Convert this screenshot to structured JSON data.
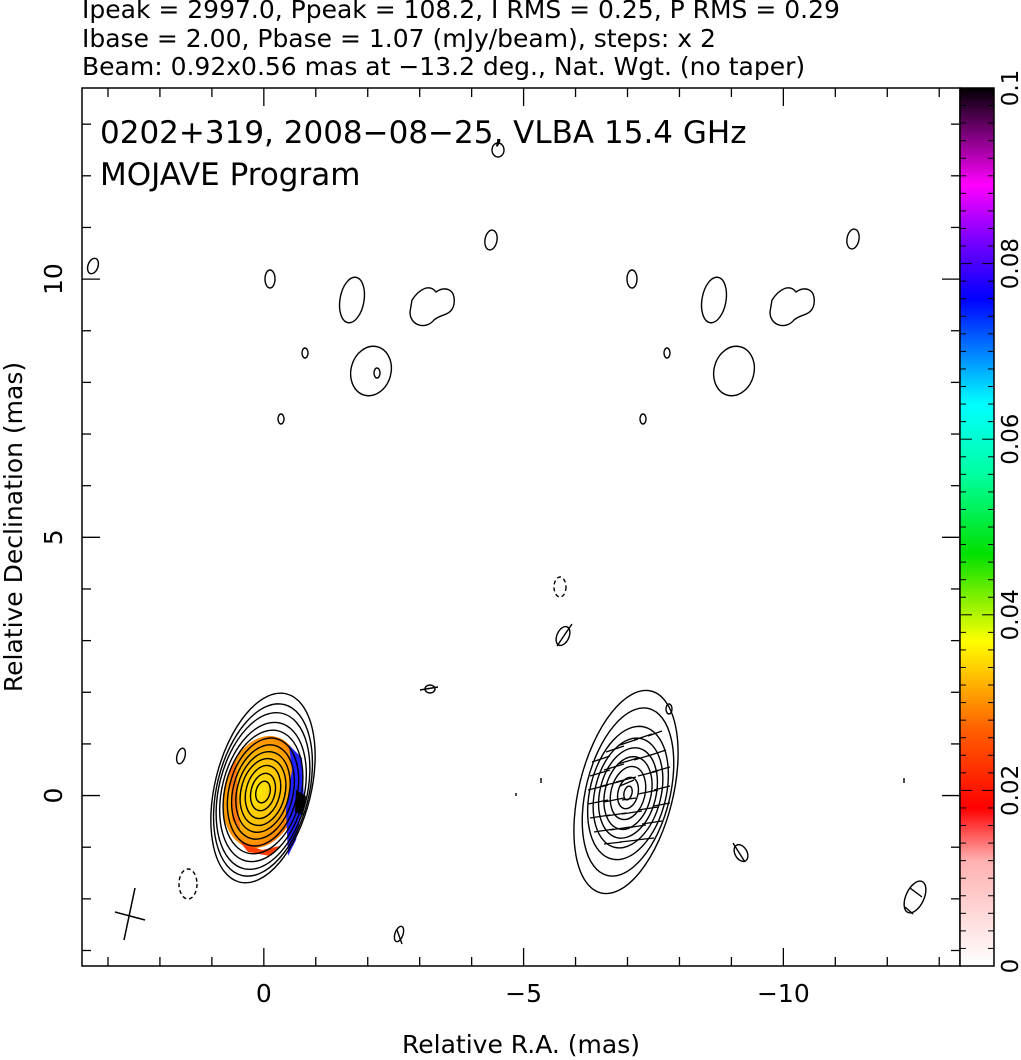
{
  "header": {
    "line1": "Ipeak = 2997.0, Ppeak = 108.2, I RMS = 0.25, P RMS = 0.29",
    "line2": "Ibase = 2.00, Pbase = 1.07 (mJy/beam), steps: x 2",
    "line3": "Beam: 0.92x0.56 mas at −13.2 deg., Nat. Wgt. (no taper)"
  },
  "panel": {
    "title_line1": "0202+319, 2008−08−25, VLBA 15.4 GHz",
    "title_line2": "MOJAVE Program"
  },
  "chart_data": {
    "type": "contour",
    "xlabel": "Relative R.A. (mas)",
    "ylabel": "Relative Declination (mas)",
    "xlim": [
      3.5,
      -13.4
    ],
    "ylim": [
      -3.3,
      13.7
    ],
    "x_ticks": [
      0,
      -5,
      -10
    ],
    "x_tick_labels": [
      "0",
      "−5",
      "−10"
    ],
    "y_ticks": [
      0,
      5,
      10
    ],
    "y_tick_labels": [
      "0",
      "5",
      "10"
    ],
    "colorbar": {
      "min": 0,
      "max": 0.1,
      "ticks": [
        0,
        0.02,
        0.04,
        0.06,
        0.08,
        0.1
      ],
      "tick_labels": [
        "0",
        "0.02",
        "0.04",
        "0.06",
        "0.08",
        "0.1"
      ],
      "colormap": [
        "#ffffff",
        "#ff0000",
        "#ff8000",
        "#ffff00",
        "#00ff00",
        "#00ffff",
        "#0000ff",
        "#ff00ff",
        "#000000"
      ]
    },
    "core": {
      "ra": 0.05,
      "dec": 0.0,
      "contour_levels": 12,
      "peak_mJy": 2997.0
    },
    "colored_region_fraction_polarization": {
      "min": 0.02,
      "max": 0.09,
      "dominant": 0.03
    },
    "evpa_ticks": true,
    "beam": {
      "major_mas": 0.92,
      "minor_mas": 0.56,
      "pa_deg": -13.2
    }
  }
}
